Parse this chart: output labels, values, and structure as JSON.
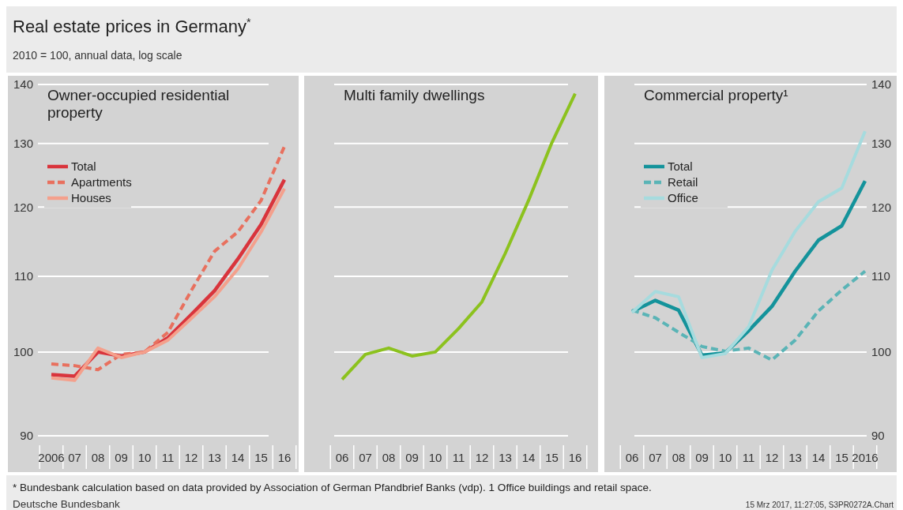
{
  "chart_data": [
    {
      "type": "line",
      "title": "Real estate prices in Germany$^{*}$",
      "subtitle": "2010 = 100, annual data, log scale",
      "annotations": [
        "Owner-occupied residential property",
        "* Bundesbank calculation based on data provided by Association of German Pfandbrief Banks (vdp). 1 Office buildings and retail space.",
        "Deutsche Bundesbank",
        "15 Mrz 2017, 11:27:05, S3PR0272A.Chart"
      ],
      "categories": [
        "2006",
        "07",
        "08",
        "09",
        "10",
        "11",
        "12",
        "13",
        "14",
        "15",
        "16"
      ],
      "series": [
        {
          "name": "Total",
          "color": "#d9343c",
          "values": [
            97.2,
            97.0,
            100.0,
            99.5,
            100.0,
            101.8,
            104.8,
            108.0,
            112.4,
            117.4,
            124.2
          ]
        },
        {
          "name": "Apartments",
          "color": "#e8705e",
          "line_style": "dashed",
          "values": [
            98.5,
            98.3,
            97.8,
            99.7,
            100.0,
            102.5,
            108.0,
            113.5,
            116.3,
            121.0,
            129.5
          ]
        },
        {
          "name": "Houses",
          "color": "#f4a08c",
          "values": [
            96.8,
            96.5,
            100.5,
            99.3,
            100.0,
            101.5,
            104.3,
            107.2,
            111.0,
            116.3,
            122.8
          ]
        }
      ],
      "ylim": [
        90,
        140
      ],
      "yticks": [
        90,
        100,
        110,
        120,
        130,
        140
      ],
      "log": "y",
      "grid": "y",
      "legend": "top left"
    },
    {
      "type": "line",
      "title": "Multi family dwellings",
      "categories": [
        "06",
        "07",
        "08",
        "09",
        "10",
        "11",
        "12",
        "13",
        "14",
        "15",
        "16"
      ],
      "series": [
        {
          "color": "#8cc21e",
          "values": [
            96.6,
            99.7,
            100.5,
            99.5,
            100.0,
            103.0,
            106.5,
            113.2,
            121.0,
            130.1,
            138.4
          ]
        }
      ],
      "ylim": [
        90,
        140
      ],
      "yticks": [
        90,
        100,
        110,
        120,
        130,
        140
      ],
      "log": "y",
      "grid": "y",
      "tick_labels": "x"
    },
    {
      "type": "line",
      "title": "Commercial property¹",
      "categories": [
        "06",
        "07",
        "08",
        "09",
        "10",
        "11",
        "12",
        "13",
        "14",
        "15",
        "2016"
      ],
      "series": [
        {
          "name": "Total",
          "color": "#14939b",
          "values": [
            105.2,
            106.7,
            105.4,
            99.6,
            99.9,
            102.7,
            105.9,
            110.7,
            115.1,
            117.2,
            124.0
          ]
        },
        {
          "name": "Retail",
          "color": "#5ab4b6",
          "line_style": "dashed",
          "values": [
            105.4,
            104.4,
            102.5,
            100.7,
            100.1,
            100.5,
            99.0,
            101.5,
            105.3,
            108.1,
            110.7
          ]
        },
        {
          "name": "Office",
          "color": "#a6dbde",
          "values": [
            105.1,
            107.9,
            107.2,
            99.3,
            99.8,
            103.2,
            110.8,
            116.4,
            120.8,
            122.9,
            132.0
          ]
        }
      ],
      "ylim": [
        90,
        140
      ],
      "yticks": [
        90,
        100,
        110,
        120,
        130,
        140
      ],
      "log": "y",
      "grid": "y",
      "legend": "top left"
    }
  ]
}
